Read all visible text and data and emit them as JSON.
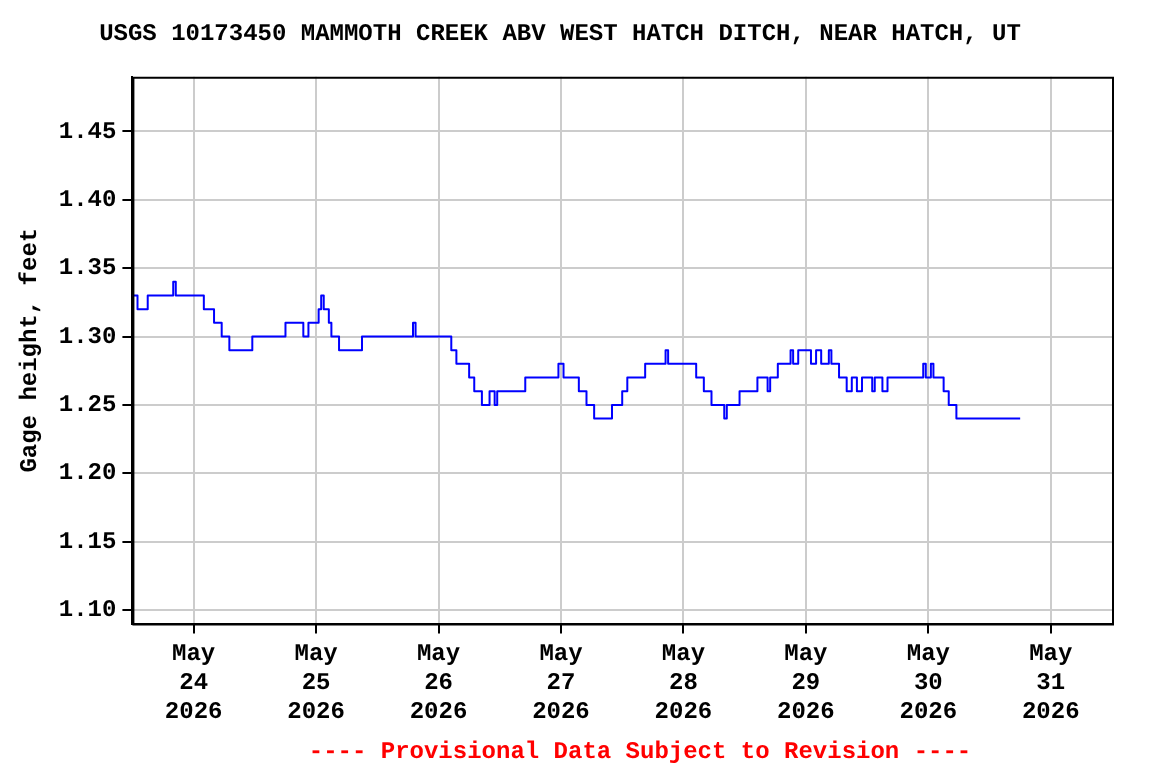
{
  "chart_data": {
    "type": "step",
    "title": "USGS 10173450 MAMMOTH CREEK ABV WEST HATCH DITCH, NEAR HATCH, UT",
    "ylabel": "Gage height, feet",
    "annotations": [
      "---- Provisional Data Subject to Revision ----"
    ],
    "x": [
      "2026-05-23T12:00",
      "2026-05-23T13:00",
      "2026-05-23T15:00",
      "2026-05-23T20:00",
      "2026-05-23T20:30",
      "2026-05-24T02:00",
      "2026-05-24T04:00",
      "2026-05-24T05:30",
      "2026-05-24T07:00",
      "2026-05-24T11:30",
      "2026-05-24T18:00",
      "2026-05-24T21:30",
      "2026-05-24T22:30",
      "2026-05-25T00:30",
      "2026-05-25T01:00",
      "2026-05-25T01:30",
      "2026-05-25T02:30",
      "2026-05-25T03:00",
      "2026-05-25T04:30",
      "2026-05-25T09:00",
      "2026-05-25T19:00",
      "2026-05-25T19:30",
      "2026-05-26T02:30",
      "2026-05-26T03:30",
      "2026-05-26T06:00",
      "2026-05-26T07:00",
      "2026-05-26T08:30",
      "2026-05-26T10:00",
      "2026-05-26T11:00",
      "2026-05-26T11:30",
      "2026-05-26T17:00",
      "2026-05-26T23:30",
      "2026-05-27T00:30",
      "2026-05-27T03:30",
      "2026-05-27T05:00",
      "2026-05-27T06:30",
      "2026-05-27T10:00",
      "2026-05-27T12:00",
      "2026-05-27T13:00",
      "2026-05-27T16:30",
      "2026-05-27T20:30",
      "2026-05-27T21:00",
      "2026-05-28T02:30",
      "2026-05-28T04:00",
      "2026-05-28T05:30",
      "2026-05-28T08:00",
      "2026-05-28T08:30",
      "2026-05-28T11:00",
      "2026-05-28T14:30",
      "2026-05-28T16:30",
      "2026-05-28T17:00",
      "2026-05-28T18:30",
      "2026-05-28T21:00",
      "2026-05-28T21:30",
      "2026-05-28T22:30",
      "2026-05-29T01:00",
      "2026-05-29T02:00",
      "2026-05-29T03:00",
      "2026-05-29T04:30",
      "2026-05-29T05:00",
      "2026-05-29T06:30",
      "2026-05-29T08:00",
      "2026-05-29T09:00",
      "2026-05-29T10:00",
      "2026-05-29T11:00",
      "2026-05-29T13:00",
      "2026-05-29T13:30",
      "2026-05-29T15:00",
      "2026-05-29T16:00",
      "2026-05-29T23:00",
      "2026-05-29T23:30",
      "2026-05-30T00:30",
      "2026-05-30T01:00",
      "2026-05-30T03:00",
      "2026-05-30T04:00",
      "2026-05-30T05:30",
      "2026-05-30T18:00"
    ],
    "series": [
      {
        "color": "#0000ff",
        "values": [
          1.33,
          1.32,
          1.33,
          1.34,
          1.33,
          1.32,
          1.31,
          1.3,
          1.29,
          1.3,
          1.31,
          1.3,
          1.31,
          1.32,
          1.33,
          1.32,
          1.31,
          1.3,
          1.29,
          1.3,
          1.31,
          1.3,
          1.29,
          1.28,
          1.27,
          1.26,
          1.25,
          1.26,
          1.25,
          1.26,
          1.27,
          1.28,
          1.27,
          1.26,
          1.25,
          1.24,
          1.25,
          1.26,
          1.27,
          1.28,
          1.29,
          1.28,
          1.27,
          1.26,
          1.25,
          1.24,
          1.25,
          1.26,
          1.27,
          1.26,
          1.27,
          1.28,
          1.29,
          1.28,
          1.29,
          1.28,
          1.29,
          1.28,
          1.29,
          1.28,
          1.27,
          1.26,
          1.27,
          1.26,
          1.27,
          1.26,
          1.27,
          1.26,
          1.27,
          1.28,
          1.27,
          1.28,
          1.27,
          1.26,
          1.25,
          1.24,
          1.24
        ]
      }
    ],
    "xlim": [
      "2026-05-23T12:00",
      "2026-05-31T12:00"
    ],
    "xticks": [
      {
        "value": "2026-05-24",
        "label": "May 24 2026"
      },
      {
        "value": "2026-05-25",
        "label": "May 25 2026"
      },
      {
        "value": "2026-05-26",
        "label": "May 26 2026"
      },
      {
        "value": "2026-05-27",
        "label": "May 27 2026"
      },
      {
        "value": "2026-05-28",
        "label": "May 28 2026"
      },
      {
        "value": "2026-05-29",
        "label": "May 29 2026"
      },
      {
        "value": "2026-05-30",
        "label": "May 30 2026"
      },
      {
        "value": "2026-05-31",
        "label": "May 31 2026"
      }
    ],
    "ylim": [
      1.09,
      1.49
    ],
    "yticks": [
      {
        "value": 1.1,
        "label": "1.10"
      },
      1.15,
      {
        "value": 1.2,
        "label": "1.20"
      },
      1.25,
      {
        "value": 1.3,
        "label": "1.30"
      },
      1.35,
      {
        "value": 1.4,
        "label": "1.40"
      },
      1.45
    ],
    "grid": true,
    "legend": false
  }
}
